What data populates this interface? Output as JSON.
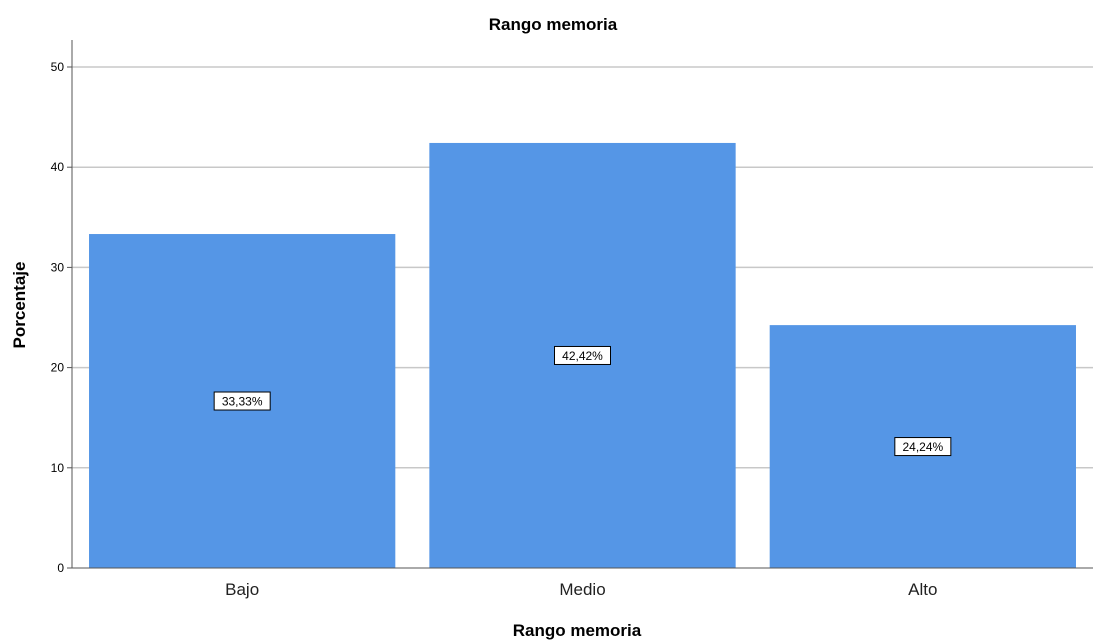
{
  "chart_data": {
    "type": "bar",
    "title": "Rango memoria",
    "xlabel": "Rango memoria",
    "ylabel": "Porcentaje",
    "categories": [
      "Bajo",
      "Medio",
      "Alto"
    ],
    "values": [
      33.33,
      42.42,
      24.24
    ],
    "data_labels": [
      "33,33%",
      "42,42%",
      "24,24%"
    ],
    "ylim": [
      0,
      52
    ],
    "yticks": [
      0,
      10,
      20,
      30,
      40,
      50
    ],
    "grid": true,
    "bar_color": "#5596e6",
    "grid_color": "#c8c8c8",
    "axis_color": "#555555"
  }
}
